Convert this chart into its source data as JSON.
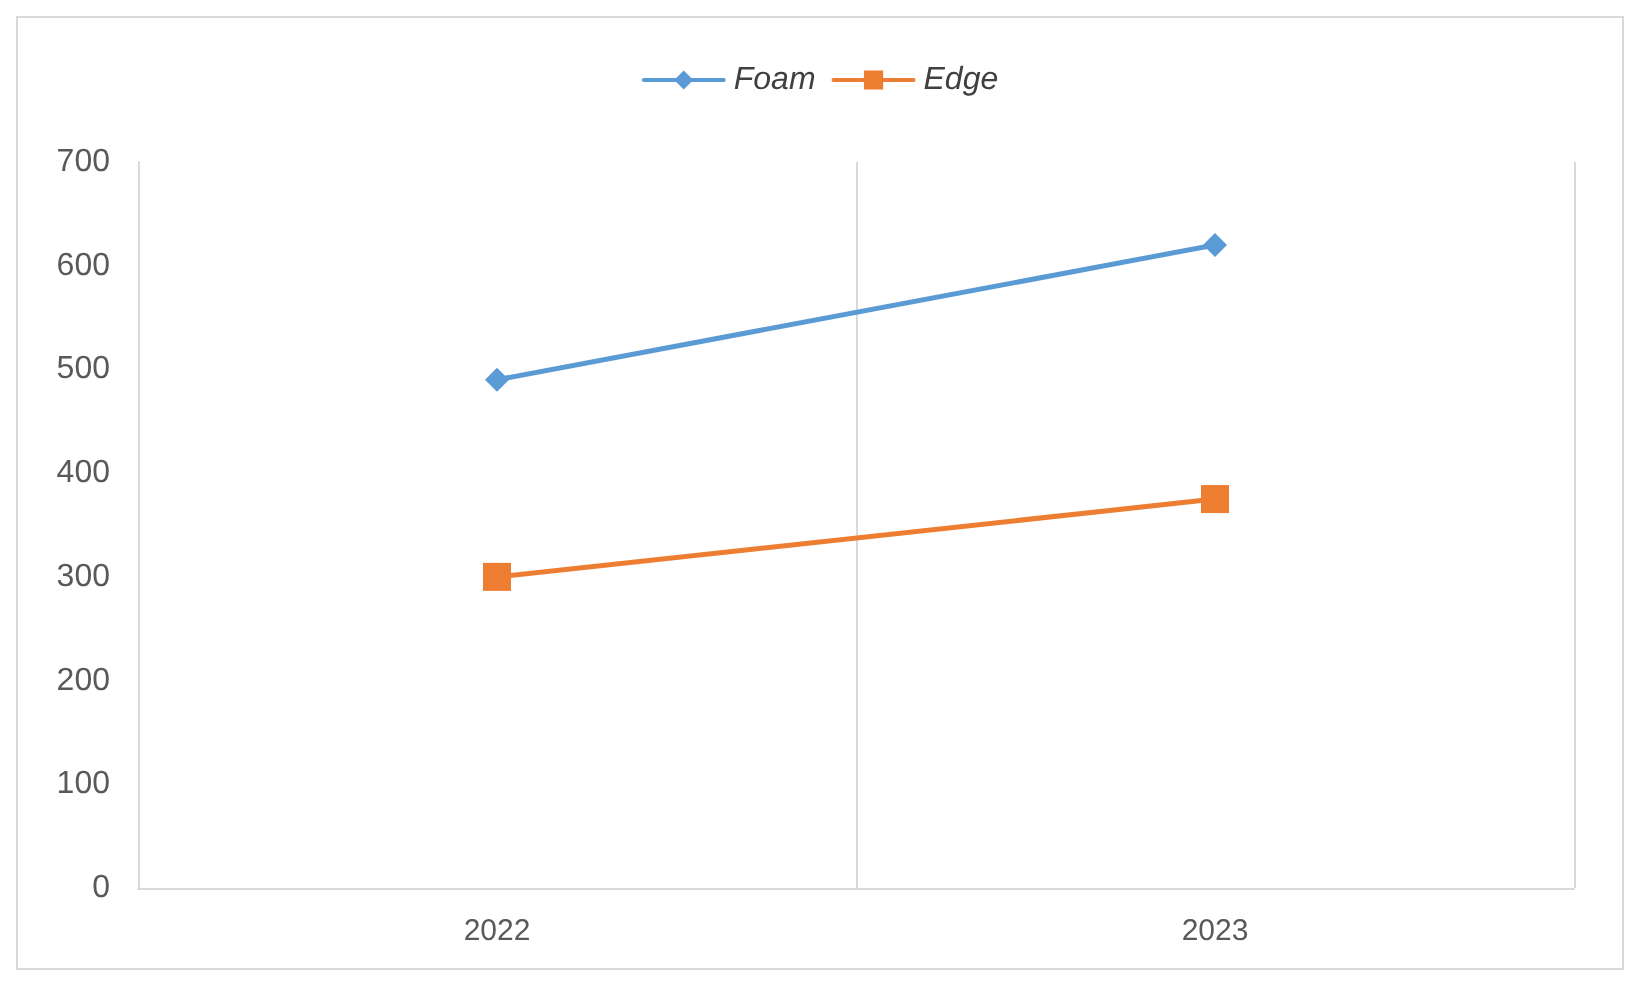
{
  "chart_data": {
    "type": "line",
    "categories": [
      "2022",
      "2023"
    ],
    "series": [
      {
        "name": "Foam",
        "color": "#5b9bd5",
        "marker": "diamond",
        "values": [
          490,
          620
        ]
      },
      {
        "name": "Edge",
        "color": "#ed7d31",
        "marker": "square",
        "values": [
          300,
          375
        ]
      }
    ],
    "ylim": [
      0,
      700
    ],
    "yticks": [
      0,
      100,
      200,
      300,
      400,
      500,
      600,
      700
    ],
    "grid": "x",
    "legend": "top",
    "line_style": "solid"
  }
}
